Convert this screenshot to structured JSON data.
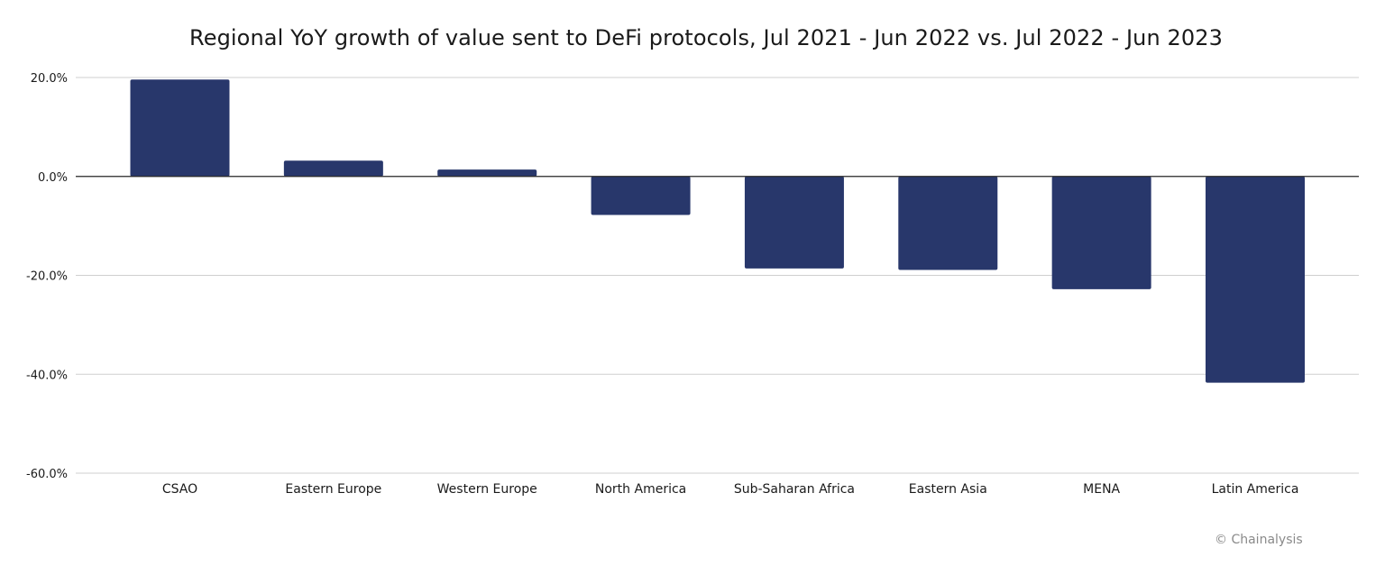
{
  "chart_data": {
    "type": "bar",
    "title": "Regional YoY growth of value sent to DeFi protocols, Jul 2021 - Jun 2022 vs. Jul 2022 - Jun 2023",
    "xlabel": "",
    "ylabel": "",
    "categories": [
      "CSAO",
      "Eastern Europe",
      "Western Europe",
      "North America",
      "Sub-Saharan Africa",
      "Eastern Asia",
      "MENA",
      "Latin America"
    ],
    "values": [
      19.6,
      3.2,
      1.4,
      -7.8,
      -18.6,
      -18.9,
      -22.8,
      -41.7
    ],
    "ylim": [
      -60,
      20
    ],
    "yticks": [
      20,
      0,
      -20,
      -40,
      -60
    ],
    "ytick_labels": [
      "20.0%",
      "0.0%",
      "-20.0%",
      "-40.0%",
      "-60.0%"
    ],
    "bar_color": "#28376b",
    "grid": true,
    "legend": "none"
  },
  "credit": "© Chainalysis"
}
